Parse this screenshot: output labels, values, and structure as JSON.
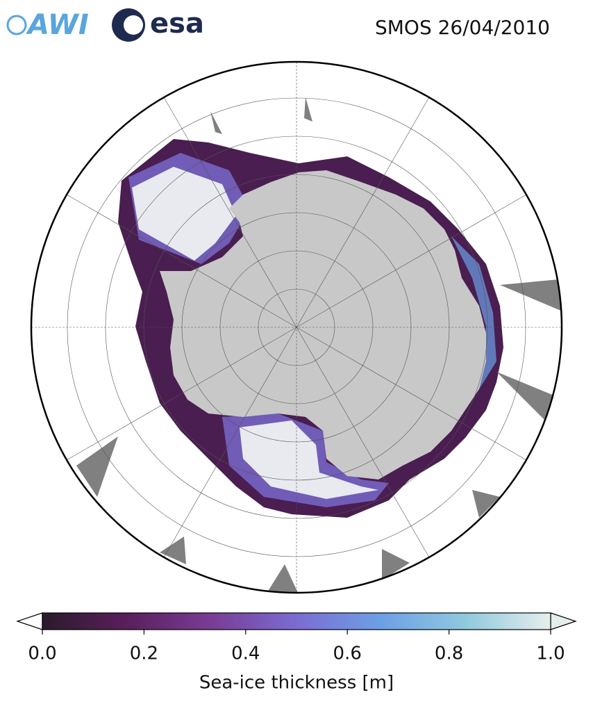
{
  "header": {
    "logos": {
      "awi": "AWI",
      "esa": "esa"
    },
    "title": "SMOS 26/04/2010"
  },
  "colorbar": {
    "label": "Sea-ice thickness [m]",
    "lim": [
      0,
      1
    ],
    "ticks": [
      {
        "value": 0,
        "label": "0.0"
      },
      {
        "value": 0.2,
        "label": "0.2"
      },
      {
        "value": 0.4,
        "label": "0.4"
      },
      {
        "value": 0.6,
        "label": "0.6"
      },
      {
        "value": 0.8,
        "label": "0.8"
      },
      {
        "value": 1,
        "label": "1.0"
      }
    ],
    "cmap": [
      "#2b1a2c",
      "#5a1f5c",
      "#7a3d96",
      "#7b6cd2",
      "#6ca0e6",
      "#8fc9de",
      "#e6eeec"
    ]
  }
}
